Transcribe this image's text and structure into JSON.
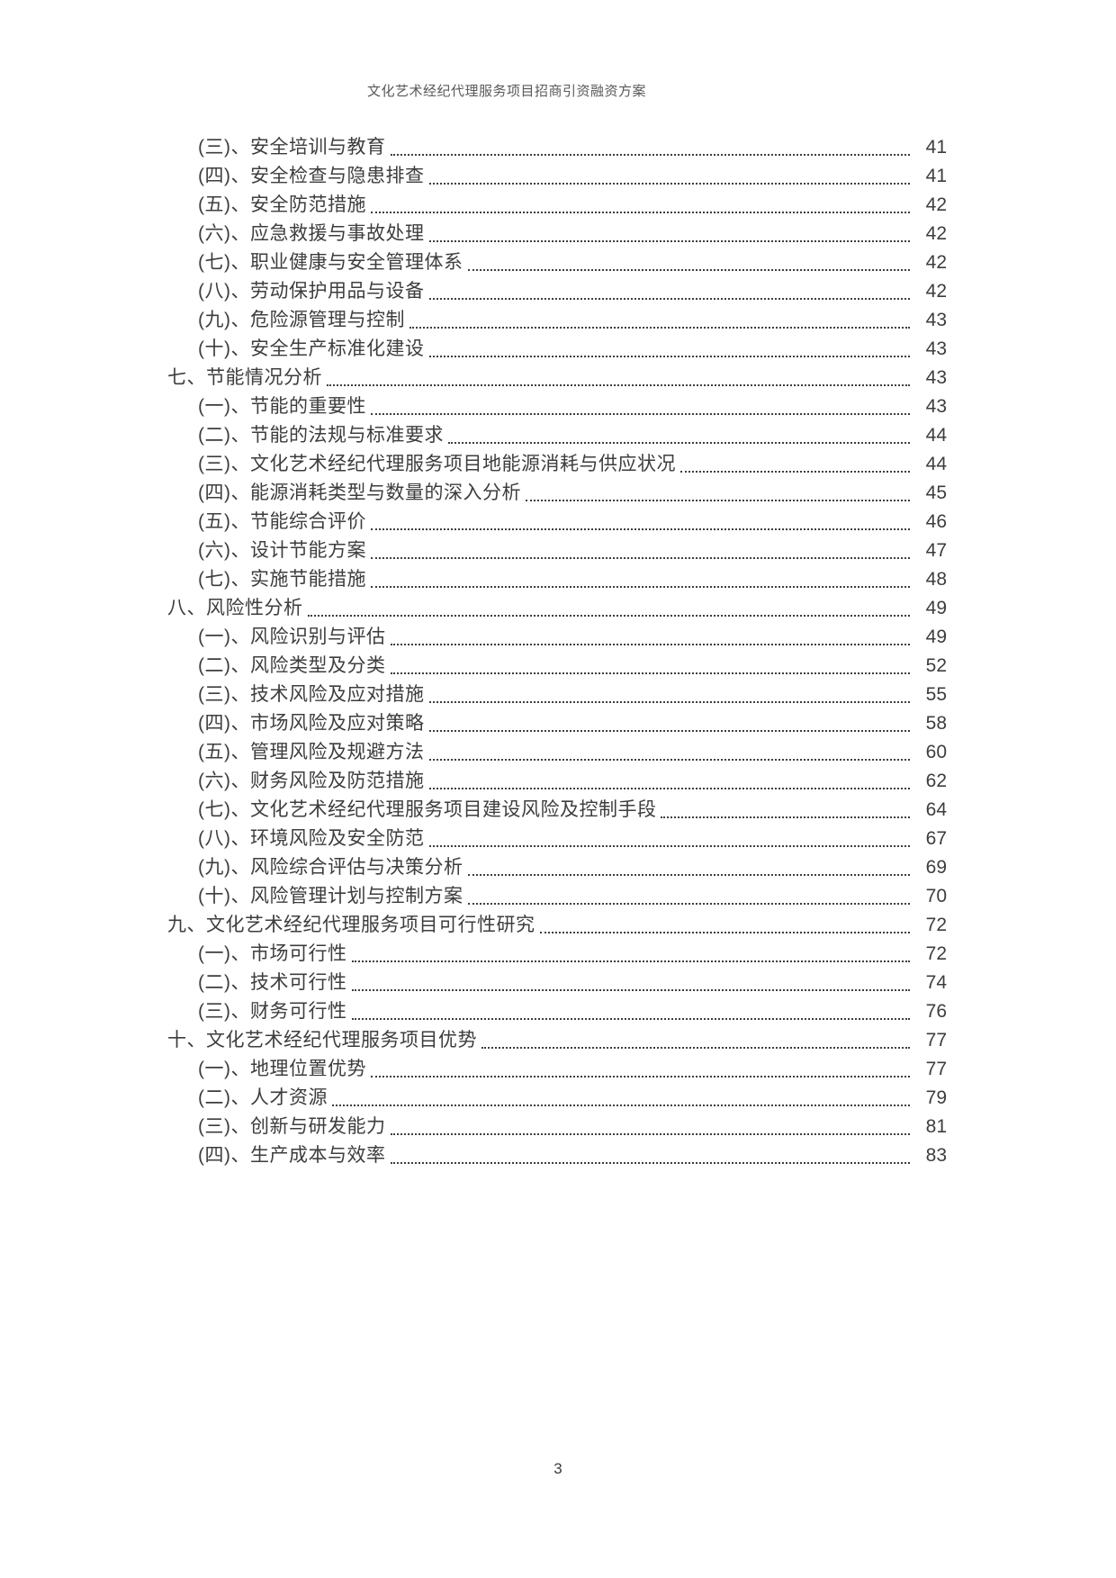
{
  "page": {
    "header_title": "文化艺术经纪代理服务项目招商引资融资方案",
    "footer_page_number": "3"
  },
  "colors": {
    "text": "#3d3d3d",
    "header_text": "#595959",
    "background": "#ffffff"
  },
  "toc": {
    "entries": [
      {
        "level": 2,
        "label": "(三)、安全培训与教育",
        "page": "41"
      },
      {
        "level": 2,
        "label": "(四)、安全检查与隐患排查",
        "page": "41"
      },
      {
        "level": 2,
        "label": "(五)、安全防范措施",
        "page": "42"
      },
      {
        "level": 2,
        "label": "(六)、应急救援与事故处理",
        "page": "42"
      },
      {
        "level": 2,
        "label": "(七)、职业健康与安全管理体系",
        "page": "42"
      },
      {
        "level": 2,
        "label": "(八)、劳动保护用品与设备",
        "page": "42"
      },
      {
        "level": 2,
        "label": "(九)、危险源管理与控制",
        "page": "43"
      },
      {
        "level": 2,
        "label": "(十)、安全生产标准化建设",
        "page": "43"
      },
      {
        "level": 1,
        "label": "七、节能情况分析",
        "page": "43"
      },
      {
        "level": 2,
        "label": "(一)、节能的重要性",
        "page": "43"
      },
      {
        "level": 2,
        "label": "(二)、节能的法规与标准要求",
        "page": "44"
      },
      {
        "level": 2,
        "label": "(三)、文化艺术经纪代理服务项目地能源消耗与供应状况",
        "page": "44"
      },
      {
        "level": 2,
        "label": "(四)、能源消耗类型与数量的深入分析",
        "page": "45"
      },
      {
        "level": 2,
        "label": "(五)、节能综合评价",
        "page": "46"
      },
      {
        "level": 2,
        "label": "(六)、设计节能方案",
        "page": "47"
      },
      {
        "level": 2,
        "label": "(七)、实施节能措施",
        "page": "48"
      },
      {
        "level": 1,
        "label": "八、风险性分析",
        "page": "49"
      },
      {
        "level": 2,
        "label": "(一)、风险识别与评估",
        "page": "49"
      },
      {
        "level": 2,
        "label": "(二)、风险类型及分类",
        "page": "52"
      },
      {
        "level": 2,
        "label": "(三)、技术风险及应对措施",
        "page": "55"
      },
      {
        "level": 2,
        "label": "(四)、市场风险及应对策略",
        "page": "58"
      },
      {
        "level": 2,
        "label": "(五)、管理风险及规避方法",
        "page": "60"
      },
      {
        "level": 2,
        "label": "(六)、财务风险及防范措施",
        "page": "62"
      },
      {
        "level": 2,
        "label": "(七)、文化艺术经纪代理服务项目建设风险及控制手段",
        "page": "64"
      },
      {
        "level": 2,
        "label": "(八)、环境风险及安全防范",
        "page": "67"
      },
      {
        "level": 2,
        "label": "(九)、风险综合评估与决策分析",
        "page": "69"
      },
      {
        "level": 2,
        "label": "(十)、风险管理计划与控制方案",
        "page": "70"
      },
      {
        "level": 1,
        "label": "九、文化艺术经纪代理服务项目可行性研究",
        "page": "72"
      },
      {
        "level": 2,
        "label": "(一)、市场可行性",
        "page": "72"
      },
      {
        "level": 2,
        "label": "(二)、技术可行性",
        "page": "74"
      },
      {
        "level": 2,
        "label": "(三)、财务可行性",
        "page": "76"
      },
      {
        "level": 1,
        "label": "十、文化艺术经纪代理服务项目优势",
        "page": "77"
      },
      {
        "level": 2,
        "label": "(一)、地理位置优势",
        "page": "77"
      },
      {
        "level": 2,
        "label": "(二)、人才资源",
        "page": "79"
      },
      {
        "level": 2,
        "label": "(三)、创新与研发能力",
        "page": "81"
      },
      {
        "level": 2,
        "label": "(四)、生产成本与效率",
        "page": "83"
      }
    ]
  }
}
